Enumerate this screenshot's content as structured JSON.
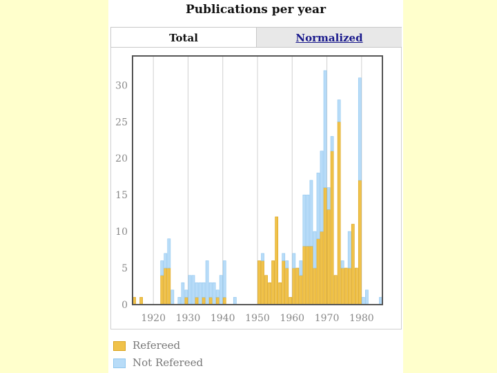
{
  "title": "Publications per year",
  "tabs": {
    "total": "Total",
    "normalized": "Normalized"
  },
  "colors": {
    "refereed": "#f0c24a",
    "refereed_edge": "#d9a21c",
    "not_refereed": "#b8dcf8",
    "not_refereed_edge": "#8fc6ef",
    "axes": "#555555",
    "grid": "#d0d0d0",
    "tick_label": "#888888"
  },
  "legend": [
    {
      "label": "Refereed",
      "series": "refereed"
    },
    {
      "label": "Not Refereed",
      "series": "not_refereed"
    }
  ],
  "chart_data": {
    "type": "bar",
    "stacked": true,
    "title": "Publications per year",
    "xlabel": "",
    "ylabel": "",
    "xlim": [
      1914,
      1986
    ],
    "ylim": [
      0,
      34
    ],
    "xticks": [
      1920,
      1930,
      1940,
      1950,
      1960,
      1970,
      1980
    ],
    "yticks": [
      0,
      5,
      10,
      15,
      20,
      25,
      30
    ],
    "grid": true,
    "legend_position": "bottom-left",
    "x": [
      1914,
      1916,
      1922,
      1923,
      1924,
      1925,
      1927,
      1928,
      1929,
      1930,
      1931,
      1932,
      1933,
      1934,
      1935,
      1936,
      1937,
      1938,
      1939,
      1940,
      1943,
      1950,
      1951,
      1952,
      1953,
      1954,
      1955,
      1956,
      1957,
      1958,
      1959,
      1960,
      1961,
      1962,
      1963,
      1964,
      1965,
      1966,
      1967,
      1968,
      1969,
      1970,
      1971,
      1972,
      1973,
      1974,
      1975,
      1976,
      1977,
      1978,
      1979,
      1980,
      1981,
      1985
    ],
    "series": [
      {
        "name": "Refereed",
        "values": [
          1,
          1,
          4,
          5,
          5,
          0,
          0,
          0,
          1,
          0,
          0,
          1,
          0,
          1,
          0,
          1,
          0,
          1,
          0,
          1,
          0,
          6,
          6,
          4,
          3,
          6,
          12,
          3,
          6,
          5,
          1,
          5,
          5,
          4,
          8,
          8,
          8,
          5,
          9,
          10,
          16,
          13,
          21,
          4,
          25,
          5,
          5,
          5,
          11,
          5,
          17,
          0,
          0,
          0
        ]
      },
      {
        "name": "Not Refereed",
        "values": [
          0,
          0,
          2,
          2,
          4,
          2,
          1,
          3,
          1,
          4,
          4,
          2,
          3,
          2,
          6,
          2,
          3,
          1,
          4,
          5,
          1,
          0,
          1,
          0,
          0,
          0,
          0,
          0,
          1,
          1,
          0,
          2,
          0,
          2,
          7,
          7,
          9,
          5,
          9,
          11,
          16,
          3,
          2,
          0,
          3,
          1,
          0,
          5,
          0,
          0,
          14,
          1,
          2,
          1
        ]
      }
    ]
  }
}
